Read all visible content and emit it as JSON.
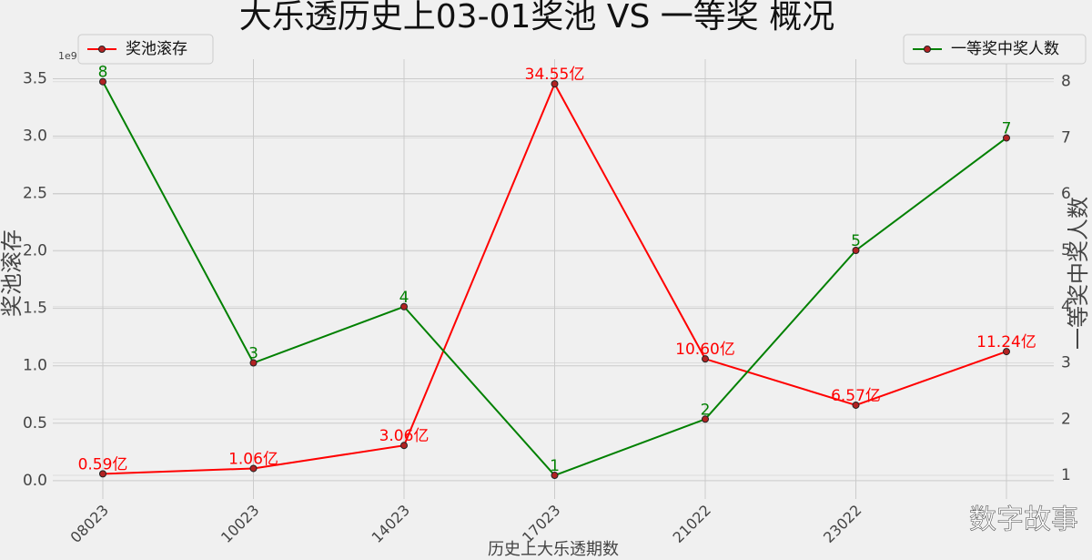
{
  "chart_data": {
    "type": "line",
    "title": "大乐透历史上03-01奖池 VS 一等奖 概况",
    "x_label": "历史上大乐透期数",
    "y_label": "奖池滚存",
    "y2_label": "一等奖中奖人数",
    "y_offset_label": "1e9",
    "watermark": "数字故事",
    "categories": [
      "08023",
      "10023",
      "14023",
      "17023",
      "21022",
      "23022",
      null
    ],
    "series": [
      {
        "name": "奖池滚存",
        "color": "#ff0000",
        "axis": "y",
        "values": [
          59000000,
          106000000,
          306000000,
          3455000000,
          1060000000,
          657000000,
          1124000000
        ],
        "value_labels": [
          "0.59亿",
          "1.06亿",
          "3.06亿",
          "34.55亿",
          "10.60亿",
          "6.57亿",
          "11.24亿"
        ]
      },
      {
        "name": "一等奖中奖人数",
        "color": "#008000",
        "axis": "y2",
        "values": [
          8,
          3,
          4,
          1,
          2,
          5,
          7
        ]
      }
    ],
    "ylim": [
      -160000000,
      3670000000
    ],
    "yticks": [
      {
        "value": 0,
        "label": "0.0"
      },
      {
        "value": 500000000,
        "label": "0.5"
      },
      {
        "value": 1000000000,
        "label": "1.0"
      },
      {
        "value": 1500000000,
        "label": "1.5"
      },
      {
        "value": 2000000000,
        "label": "2.0"
      },
      {
        "value": 2500000000,
        "label": "2.5"
      },
      {
        "value": 3000000000,
        "label": "3.0"
      },
      {
        "value": 3500000000,
        "label": "3.5"
      }
    ],
    "y2lim": [
      0.58,
      8.4
    ],
    "y2ticks": [
      1,
      2,
      3,
      4,
      5,
      6,
      7,
      8
    ],
    "grid": true
  }
}
